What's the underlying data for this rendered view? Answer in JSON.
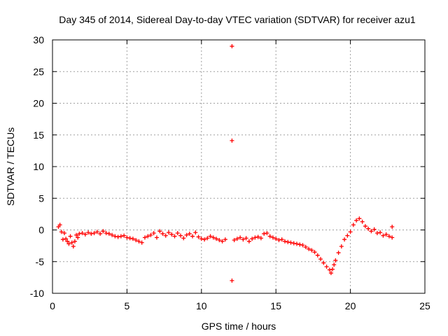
{
  "chart_data": {
    "type": "scatter",
    "title": "Day 345 of 2014, Sidereal Day-to-day VTEC variation (SDTVAR) for receiver azu1",
    "xlabel": "GPS time / hours",
    "ylabel": "SDTVAR / TECUs",
    "xlim": [
      0,
      25
    ],
    "ylim": [
      -10,
      30
    ],
    "xticks": [
      "0",
      "5",
      "10",
      "15",
      "20",
      "25"
    ],
    "yticks": [
      "-10",
      "-5",
      "0",
      "5",
      "10",
      "15",
      "20",
      "25",
      "30"
    ],
    "grid": true,
    "marker": "+",
    "color": "#ff0000",
    "series": [
      {
        "name": "SDTVAR",
        "points": [
          [
            0.4,
            0.5
          ],
          [
            0.5,
            0.8
          ],
          [
            0.6,
            -0.3
          ],
          [
            0.7,
            -1.5
          ],
          [
            0.8,
            -0.5
          ],
          [
            0.9,
            -1.4
          ],
          [
            1.0,
            -1.8
          ],
          [
            1.1,
            -2.2
          ],
          [
            1.2,
            -1.0
          ],
          [
            1.3,
            -2.0
          ],
          [
            1.4,
            -2.6
          ],
          [
            1.5,
            -1.8
          ],
          [
            1.6,
            -0.8
          ],
          [
            1.7,
            -1.2
          ],
          [
            1.8,
            -0.6
          ],
          [
            2.0,
            -0.5
          ],
          [
            2.2,
            -0.7
          ],
          [
            2.4,
            -0.4
          ],
          [
            2.6,
            -0.6
          ],
          [
            2.8,
            -0.5
          ],
          [
            3.0,
            -0.3
          ],
          [
            3.2,
            -0.6
          ],
          [
            3.4,
            -0.2
          ],
          [
            3.6,
            -0.5
          ],
          [
            3.8,
            -0.6
          ],
          [
            4.0,
            -0.8
          ],
          [
            4.2,
            -1.0
          ],
          [
            4.4,
            -1.1
          ],
          [
            4.6,
            -1.0
          ],
          [
            4.8,
            -0.9
          ],
          [
            5.0,
            -1.2
          ],
          [
            5.2,
            -1.3
          ],
          [
            5.4,
            -1.4
          ],
          [
            5.6,
            -1.6
          ],
          [
            5.8,
            -1.8
          ],
          [
            6.0,
            -2.0
          ],
          [
            6.2,
            -1.2
          ],
          [
            6.4,
            -1.0
          ],
          [
            6.6,
            -0.8
          ],
          [
            6.8,
            -0.5
          ],
          [
            7.0,
            -1.2
          ],
          [
            7.2,
            -0.2
          ],
          [
            7.4,
            -0.6
          ],
          [
            7.6,
            -0.9
          ],
          [
            7.8,
            -0.4
          ],
          [
            8.0,
            -0.7
          ],
          [
            8.2,
            -1.0
          ],
          [
            8.4,
            -0.5
          ],
          [
            8.6,
            -0.9
          ],
          [
            8.8,
            -1.3
          ],
          [
            9.0,
            -0.8
          ],
          [
            9.2,
            -0.6
          ],
          [
            9.4,
            -1.0
          ],
          [
            9.6,
            -0.4
          ],
          [
            9.8,
            -1.1
          ],
          [
            10.0,
            -1.4
          ],
          [
            10.2,
            -1.5
          ],
          [
            10.4,
            -1.3
          ],
          [
            10.6,
            -1.0
          ],
          [
            10.8,
            -1.2
          ],
          [
            11.0,
            -1.4
          ],
          [
            11.2,
            -1.6
          ],
          [
            11.4,
            -1.8
          ],
          [
            11.6,
            -1.5
          ],
          [
            12.05,
            29.0
          ],
          [
            12.05,
            14.1
          ],
          [
            12.05,
            -8.0
          ],
          [
            12.2,
            -1.6
          ],
          [
            12.4,
            -1.4
          ],
          [
            12.6,
            -1.2
          ],
          [
            12.8,
            -1.5
          ],
          [
            13.0,
            -1.3
          ],
          [
            13.2,
            -1.8
          ],
          [
            13.4,
            -1.4
          ],
          [
            13.6,
            -1.2
          ],
          [
            13.8,
            -1.1
          ],
          [
            14.0,
            -1.3
          ],
          [
            14.2,
            -0.6
          ],
          [
            14.4,
            -0.5
          ],
          [
            14.6,
            -1.0
          ],
          [
            14.8,
            -1.2
          ],
          [
            15.0,
            -1.4
          ],
          [
            15.2,
            -1.6
          ],
          [
            15.4,
            -1.5
          ],
          [
            15.6,
            -1.8
          ],
          [
            15.8,
            -1.9
          ],
          [
            16.0,
            -2.0
          ],
          [
            16.2,
            -2.1
          ],
          [
            16.4,
            -2.2
          ],
          [
            16.6,
            -2.3
          ],
          [
            16.8,
            -2.4
          ],
          [
            17.0,
            -2.7
          ],
          [
            17.2,
            -3.0
          ],
          [
            17.4,
            -3.2
          ],
          [
            17.6,
            -3.5
          ],
          [
            17.8,
            -4.0
          ],
          [
            18.0,
            -4.6
          ],
          [
            18.2,
            -5.2
          ],
          [
            18.4,
            -5.8
          ],
          [
            18.6,
            -6.3
          ],
          [
            18.7,
            -6.8
          ],
          [
            18.8,
            -6.2
          ],
          [
            18.9,
            -5.5
          ],
          [
            19.0,
            -4.8
          ],
          [
            19.2,
            -3.6
          ],
          [
            19.4,
            -2.6
          ],
          [
            19.6,
            -1.5
          ],
          [
            19.8,
            -0.9
          ],
          [
            20.0,
            -0.3
          ],
          [
            20.2,
            0.8
          ],
          [
            20.4,
            1.5
          ],
          [
            20.6,
            1.8
          ],
          [
            20.8,
            1.3
          ],
          [
            21.0,
            0.6
          ],
          [
            21.2,
            0.2
          ],
          [
            21.4,
            -0.2
          ],
          [
            21.6,
            0.1
          ],
          [
            21.8,
            -0.5
          ],
          [
            22.0,
            -0.4
          ],
          [
            22.2,
            -0.9
          ],
          [
            22.4,
            -0.7
          ],
          [
            22.6,
            -1.0
          ],
          [
            22.8,
            0.5
          ],
          [
            22.8,
            -1.2
          ]
        ]
      }
    ]
  }
}
